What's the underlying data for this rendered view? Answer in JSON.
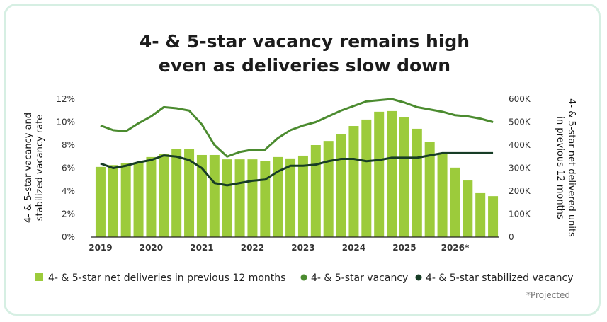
{
  "chart_data": {
    "type": "bar-line",
    "title": [
      "4- & 5-star vacancy remains high",
      "even as deliveries slow down"
    ],
    "y_label": [
      "4- & 5-star vacancy and",
      "stabilized vacancy rate"
    ],
    "y2_label": [
      "4- & 5-star net delivered units",
      "in previous 12 months"
    ],
    "categories": [
      "2019",
      null,
      null,
      null,
      "2020",
      null,
      null,
      null,
      "2021",
      null,
      null,
      null,
      "2022",
      null,
      null,
      null,
      "2023",
      null,
      null,
      null,
      "2024",
      null,
      null,
      null,
      "2025",
      null,
      null,
      null,
      "2026*",
      null,
      null,
      null
    ],
    "ylim": [
      0,
      12
    ],
    "yticks": [
      {
        "value": 0,
        "label": "0%"
      },
      {
        "value": 2,
        "label": "2%"
      },
      {
        "value": 4,
        "label": "4%"
      },
      {
        "value": 6,
        "label": "6%"
      },
      {
        "value": 8,
        "label": "8%"
      },
      {
        "value": 10,
        "label": "10%"
      },
      {
        "value": 12,
        "label": "12%"
      }
    ],
    "y2lim": [
      0,
      600000
    ],
    "y2ticks": [
      0,
      {
        "value": 100000,
        "label": "100K"
      },
      {
        "value": 200000,
        "label": "200K"
      },
      {
        "value": 300000,
        "label": "300K"
      },
      {
        "value": 400000,
        "label": "400K"
      },
      {
        "value": 500000,
        "label": "500K"
      },
      {
        "value": 600000,
        "label": "600K"
      }
    ],
    "series": [
      {
        "name": "4- & 5-star net deliveries in previous 12 months",
        "type": "bar",
        "axis": "y2",
        "color": "#9ccb3b",
        "values": [
          305000,
          313000,
          320000,
          325000,
          348000,
          360000,
          382000,
          382000,
          357000,
          357000,
          338000,
          338000,
          338000,
          330000,
          348000,
          342000,
          354000,
          400000,
          418000,
          449000,
          483000,
          511000,
          545000,
          548000,
          520000,
          471000,
          415000,
          360000,
          302000,
          246000,
          191000,
          178000
        ]
      },
      {
        "name": "4- & 5-star vacancy",
        "type": "line",
        "color": "#4b8b2f",
        "values": [
          9.7,
          9.3,
          9.2,
          9.9,
          10.5,
          11.3,
          11.2,
          11.0,
          9.8,
          8.0,
          7.0,
          7.4,
          7.6,
          7.6,
          8.6,
          9.3,
          9.7,
          10.0,
          10.5,
          11.0,
          11.4,
          11.8,
          11.9,
          12.0,
          11.7,
          11.3,
          11.1,
          10.9,
          10.6,
          10.5,
          10.3,
          10.0
        ]
      },
      {
        "name": "4- & 5-star stabilized vacancy",
        "type": "line",
        "color": "#173d26",
        "values": [
          6.4,
          6.0,
          6.2,
          6.5,
          6.7,
          7.1,
          7.0,
          6.7,
          6.0,
          4.7,
          4.5,
          4.7,
          4.9,
          5.0,
          5.7,
          6.2,
          6.2,
          6.3,
          6.6,
          6.8,
          6.8,
          6.6,
          6.7,
          6.9,
          6.9,
          6.9,
          7.1,
          7.3,
          7.3,
          7.3,
          7.3,
          7.3
        ]
      }
    ],
    "footnote": "*Projected"
  }
}
